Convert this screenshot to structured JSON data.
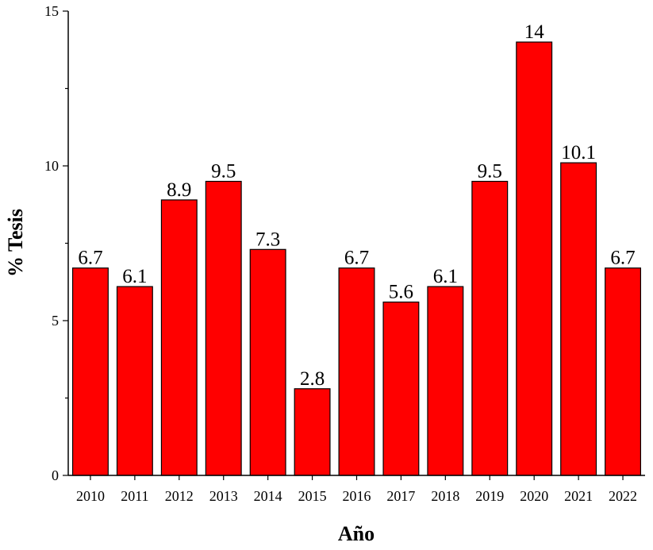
{
  "chart_data": {
    "type": "bar",
    "categories": [
      "2010",
      "2011",
      "2012",
      "2013",
      "2014",
      "2015",
      "2016",
      "2017",
      "2018",
      "2019",
      "2020",
      "2021",
      "2022"
    ],
    "values": [
      6.7,
      6.1,
      8.9,
      9.5,
      7.3,
      2.8,
      6.7,
      5.6,
      6.1,
      9.5,
      14,
      10.1,
      6.7
    ],
    "value_labels": [
      "6.7",
      "6.1",
      "8.9",
      "9.5",
      "7.3",
      "2.8",
      "6.7",
      "5.6",
      "6.1",
      "9.5",
      "14",
      "10.1",
      "6.7"
    ],
    "xlabel": "Año",
    "ylabel": "% Tesis",
    "ylim": [
      0,
      15
    ],
    "yticks": [
      0,
      5,
      10,
      15
    ],
    "grid": false,
    "bar_color": "#ff0000"
  }
}
